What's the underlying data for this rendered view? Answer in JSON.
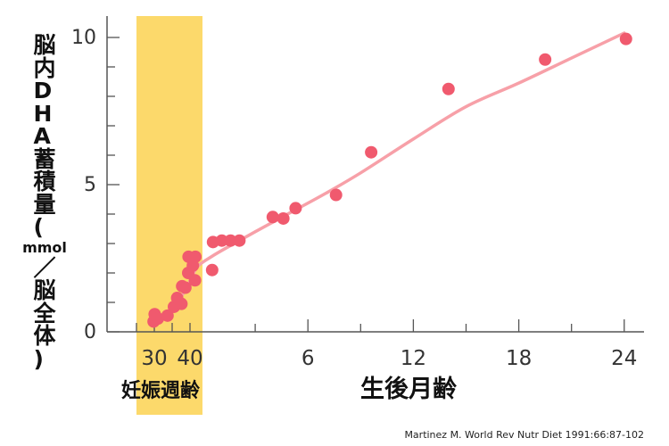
{
  "chart_data": {
    "type": "scatter",
    "ylabel": {
      "part1": "脳内DHA蓄積量(",
      "unit": "mmol",
      "part2": "／脳全体)"
    },
    "x_ticks": [
      {
        "x": 30,
        "label": "30",
        "axis": "gestation"
      },
      {
        "x": 40,
        "label": "40",
        "axis": "gestation"
      },
      {
        "x": 6,
        "label": "6",
        "axis": "postnatal"
      },
      {
        "x": 12,
        "label": "12",
        "axis": "postnatal"
      },
      {
        "x": 18,
        "label": "18",
        "axis": "postnatal"
      },
      {
        "x": 24,
        "label": "24",
        "axis": "postnatal"
      }
    ],
    "xlabel_gestation": "妊娠週齢",
    "xlabel_postnatal": "生後月齢",
    "y_ticks": [
      0,
      5,
      10
    ],
    "ylim": [
      0,
      10.6
    ],
    "shaded_region_label": "妊娠週齢",
    "shaded_region_weeks": [
      25,
      43.5
    ],
    "colors": {
      "points": "#f05a6e",
      "curve": "#f7a0a8",
      "shade": "#fcd96b",
      "axis": "#555555"
    },
    "points": [
      {
        "t": "gw",
        "x": 29.8,
        "y": 0.35
      },
      {
        "t": "gw",
        "x": 30.1,
        "y": 0.6
      },
      {
        "t": "gw",
        "x": 31.0,
        "y": 0.45
      },
      {
        "t": "gw",
        "x": 33.7,
        "y": 0.55
      },
      {
        "t": "gw",
        "x": 35.5,
        "y": 0.85
      },
      {
        "t": "gw",
        "x": 36.4,
        "y": 1.15
      },
      {
        "t": "gw",
        "x": 37.6,
        "y": 0.95
      },
      {
        "t": "gw",
        "x": 37.8,
        "y": 1.55
      },
      {
        "t": "gw",
        "x": 38.7,
        "y": 1.5
      },
      {
        "t": "gw",
        "x": 39.5,
        "y": 2.0
      },
      {
        "t": "gw",
        "x": 39.6,
        "y": 2.55
      },
      {
        "t": "gw",
        "x": 40.8,
        "y": 2.25
      },
      {
        "t": "gw",
        "x": 41.4,
        "y": 1.75
      },
      {
        "t": "gw",
        "x": 41.5,
        "y": 2.55
      },
      {
        "t": "mo",
        "x": 0.55,
        "y": 2.1
      },
      {
        "t": "mo",
        "x": 0.6,
        "y": 3.05
      },
      {
        "t": "mo",
        "x": 1.1,
        "y": 3.1
      },
      {
        "t": "mo",
        "x": 1.6,
        "y": 3.1
      },
      {
        "t": "mo",
        "x": 2.1,
        "y": 3.1
      },
      {
        "t": "mo",
        "x": 4.0,
        "y": 3.9
      },
      {
        "t": "mo",
        "x": 4.6,
        "y": 3.85
      },
      {
        "t": "mo",
        "x": 5.3,
        "y": 4.2
      },
      {
        "t": "mo",
        "x": 7.6,
        "y": 4.65
      },
      {
        "t": "mo",
        "x": 9.6,
        "y": 6.1
      },
      {
        "t": "mo",
        "x": 14.0,
        "y": 8.25
      },
      {
        "t": "mo",
        "x": 19.5,
        "y": 9.25
      },
      {
        "t": "mo",
        "x": 24.1,
        "y": 9.95
      }
    ],
    "trend": [
      {
        "t": "gw",
        "x": 30.5,
        "y": 0.35
      },
      {
        "t": "gw",
        "x": 33.5,
        "y": 0.6
      },
      {
        "t": "gw",
        "x": 36.5,
        "y": 1.0
      },
      {
        "t": "gw",
        "x": 39.5,
        "y": 1.6
      },
      {
        "t": "gw",
        "x": 42.0,
        "y": 2.2
      },
      {
        "t": "mo",
        "x": 0.5,
        "y": 2.55
      },
      {
        "t": "mo",
        "x": 1.5,
        "y": 2.9
      },
      {
        "t": "mo",
        "x": 3.0,
        "y": 3.4
      },
      {
        "t": "mo",
        "x": 5.0,
        "y": 4.05
      },
      {
        "t": "mo",
        "x": 7.0,
        "y": 4.7
      },
      {
        "t": "mo",
        "x": 9.0,
        "y": 5.4
      },
      {
        "t": "mo",
        "x": 12.0,
        "y": 6.55
      },
      {
        "t": "mo",
        "x": 15.0,
        "y": 7.65
      },
      {
        "t": "mo",
        "x": 18.0,
        "y": 8.45
      },
      {
        "t": "mo",
        "x": 21.0,
        "y": 9.3
      },
      {
        "t": "mo",
        "x": 24.0,
        "y": 10.15
      }
    ]
  },
  "source": "Martinez M. World Rev Nutr Diet 1991:66:87-102"
}
